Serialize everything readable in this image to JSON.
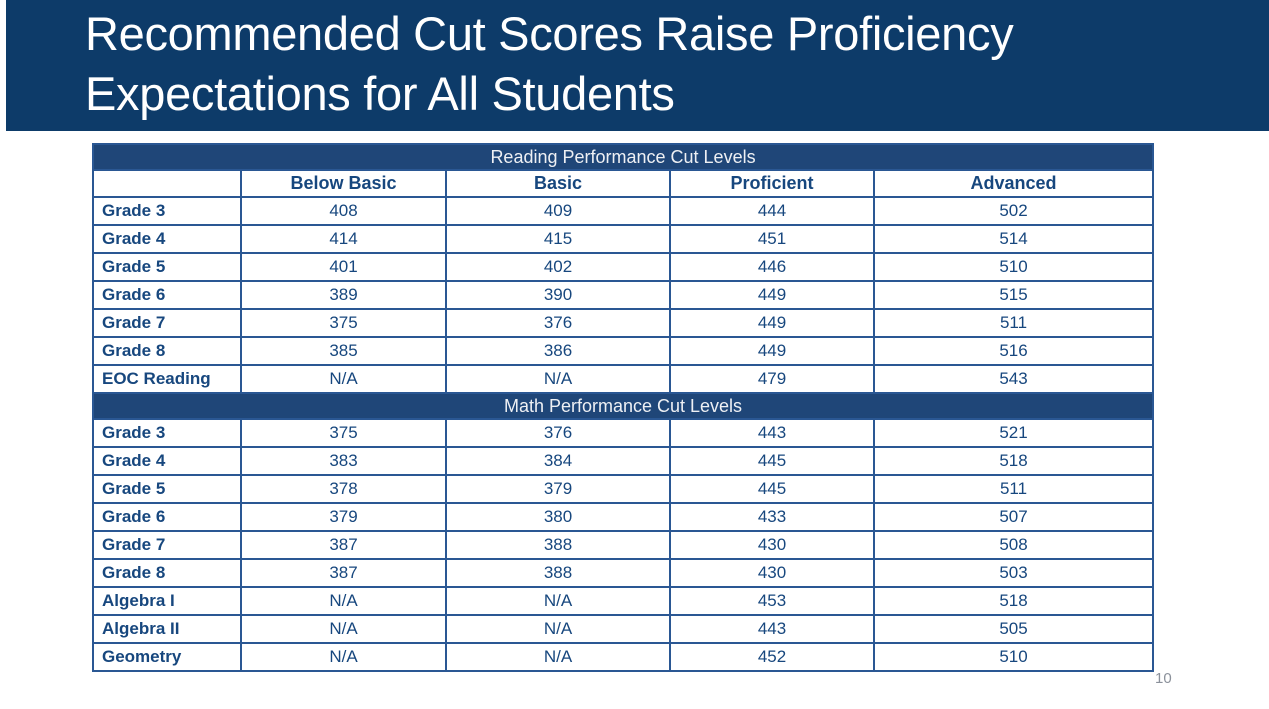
{
  "slide": {
    "title_line1": "Recommended Cut Scores Raise Proficiency",
    "title_line2": "Expectations for All Students",
    "page_number": "10"
  },
  "colors": {
    "banner_background": "#0d3b69",
    "band_background": "#1f4678",
    "table_border": "#2a5793",
    "table_text": "#17477e",
    "title_text": "#ffffff",
    "page_number_text": "#8b919b"
  },
  "table": {
    "column_headers": [
      "Below Basic",
      "Basic",
      "Proficient",
      "Advanced"
    ],
    "sections": [
      {
        "band": "Reading Performance Cut Levels",
        "rows": [
          {
            "label": "Grade 3",
            "values": [
              "408",
              "409",
              "444",
              "502"
            ]
          },
          {
            "label": "Grade 4",
            "values": [
              "414",
              "415",
              "451",
              "514"
            ]
          },
          {
            "label": "Grade 5",
            "values": [
              "401",
              "402",
              "446",
              "510"
            ]
          },
          {
            "label": "Grade 6",
            "values": [
              "389",
              "390",
              "449",
              "515"
            ]
          },
          {
            "label": "Grade 7",
            "values": [
              "375",
              "376",
              "449",
              "511"
            ]
          },
          {
            "label": "Grade 8",
            "values": [
              "385",
              "386",
              "449",
              "516"
            ]
          },
          {
            "label": "EOC Reading",
            "values": [
              "N/A",
              "N/A",
              "479",
              "543"
            ]
          }
        ]
      },
      {
        "band": "Math Performance Cut Levels",
        "rows": [
          {
            "label": "Grade 3",
            "values": [
              "375",
              "376",
              "443",
              "521"
            ]
          },
          {
            "label": "Grade 4",
            "values": [
              "383",
              "384",
              "445",
              "518"
            ]
          },
          {
            "label": "Grade 5",
            "values": [
              "378",
              "379",
              "445",
              "511"
            ]
          },
          {
            "label": "Grade 6",
            "values": [
              "379",
              "380",
              "433",
              "507"
            ]
          },
          {
            "label": "Grade 7",
            "values": [
              "387",
              "388",
              "430",
              "508"
            ]
          },
          {
            "label": "Grade 8",
            "values": [
              "387",
              "388",
              "430",
              "503"
            ]
          },
          {
            "label": "Algebra I",
            "values": [
              "N/A",
              "N/A",
              "453",
              "518"
            ]
          },
          {
            "label": "Algebra II",
            "values": [
              "N/A",
              "N/A",
              "443",
              "505"
            ]
          },
          {
            "label": "Geometry",
            "values": [
              "N/A",
              "N/A",
              "452",
              "510"
            ]
          }
        ]
      }
    ]
  }
}
